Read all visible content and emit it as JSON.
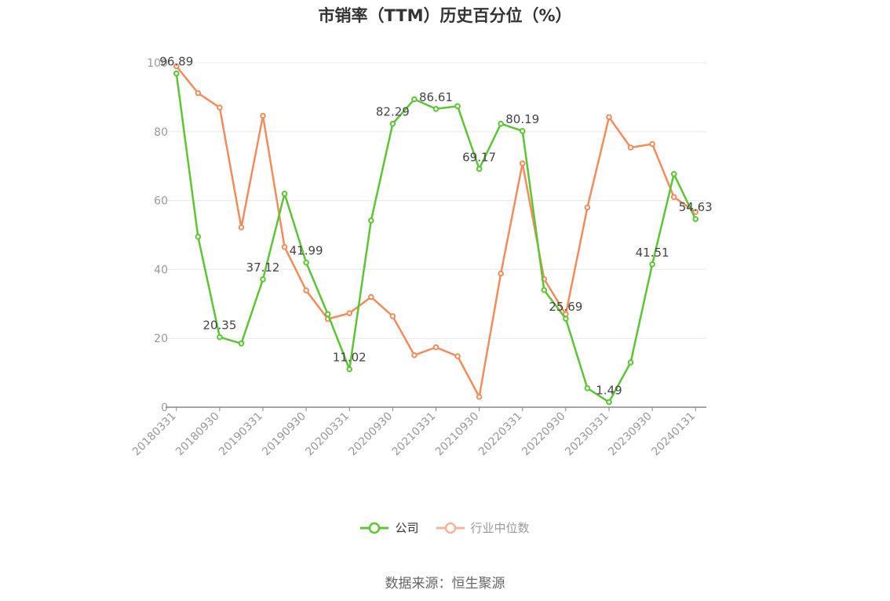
{
  "title": "市销率（TTM）历史百分位（%）",
  "source": "数据来源：恒生聚源",
  "colors": {
    "company": "#5dc534",
    "industry": "#f28c5b",
    "industry_legend": "#f6b59a",
    "grid": "#e6e8ee",
    "axis": "#999999"
  },
  "chart_data": {
    "type": "line",
    "title": "市销率（TTM）历史百分位（%）",
    "xlabel": "",
    "ylabel": "",
    "ylim": [
      0,
      100
    ],
    "yticks": [
      0,
      20,
      40,
      60,
      80,
      100
    ],
    "grid": true,
    "legend_position": "bottom",
    "x": [
      "20180331",
      "20180630",
      "20180930",
      "20181231",
      "20190331",
      "20190630",
      "20190930",
      "20191231",
      "20200331",
      "20200630",
      "20200930",
      "20201231",
      "20210331",
      "20210630",
      "20210930",
      "20211231",
      "20220331",
      "20220630",
      "20220930",
      "20221231",
      "20230331",
      "20230630",
      "20230930",
      "20231231",
      "20240131"
    ],
    "xtick_labels": [
      "20180331",
      "20180930",
      "20190331",
      "20190930",
      "20200331",
      "20200930",
      "20210331",
      "20210930",
      "20220331",
      "20220930",
      "20230331",
      "20230930",
      "20240131"
    ],
    "series": [
      {
        "name": "公司",
        "values": [
          96.89,
          49.5,
          20.35,
          18.5,
          37.12,
          62.0,
          41.99,
          27.0,
          11.02,
          54.2,
          82.29,
          89.4,
          86.61,
          87.4,
          69.17,
          82.3,
          80.19,
          34.0,
          25.69,
          5.5,
          1.49,
          13.0,
          41.51,
          67.7,
          54.63
        ],
        "labeled_points": [
          {
            "index": 0,
            "label": "96.89"
          },
          {
            "index": 2,
            "label": "20.35"
          },
          {
            "index": 4,
            "label": "37.12"
          },
          {
            "index": 6,
            "label": "41.99"
          },
          {
            "index": 8,
            "label": "11.02"
          },
          {
            "index": 10,
            "label": "82.29"
          },
          {
            "index": 12,
            "label": "86.61"
          },
          {
            "index": 14,
            "label": "69.17"
          },
          {
            "index": 16,
            "label": "80.19"
          },
          {
            "index": 18,
            "label": "25.69"
          },
          {
            "index": 20,
            "label": "1.49"
          },
          {
            "index": 22,
            "label": "41.51"
          },
          {
            "index": 24,
            "label": "54.63"
          }
        ]
      },
      {
        "name": "行业中位数",
        "values": [
          99.0,
          91.2,
          87.0,
          52.2,
          84.6,
          46.5,
          33.9,
          25.6,
          27.3,
          32.0,
          26.4,
          15.1,
          17.4,
          14.8,
          3.0,
          38.8,
          70.8,
          37.2,
          27.0,
          58.0,
          84.2,
          75.4,
          76.4,
          61.0,
          56.7
        ]
      }
    ]
  }
}
